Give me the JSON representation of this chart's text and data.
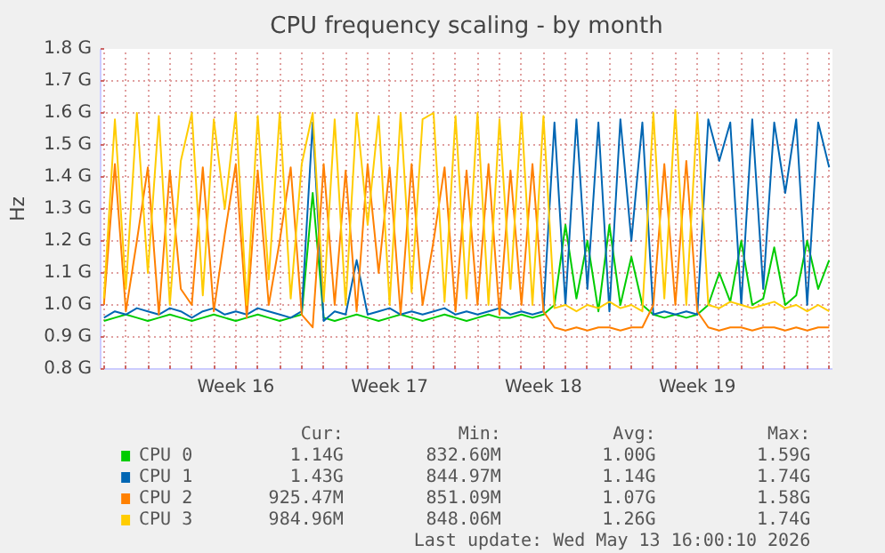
{
  "chart_data": {
    "type": "line",
    "title": "CPU frequency scaling - by month",
    "ylabel": "Hz",
    "categories": [
      null,
      null,
      null,
      null,
      null,
      null,
      null,
      null,
      null,
      null,
      null,
      null,
      "Week 16",
      null,
      null,
      null,
      null,
      null,
      null,
      null,
      null,
      null,
      null,
      null,
      null,
      null,
      "Week 17",
      null,
      null,
      null,
      null,
      null,
      null,
      null,
      null,
      null,
      null,
      null,
      null,
      null,
      "Week 18",
      null,
      null,
      null,
      null,
      null,
      null,
      null,
      null,
      null,
      null,
      null,
      null,
      null,
      "Week 19",
      null,
      null,
      null,
      null,
      null,
      null,
      null,
      null,
      null,
      null,
      null,
      null
    ],
    "ylim": [
      0.8,
      1.8
    ],
    "yticks": [
      {
        "value": 0.8,
        "label": "0.8 G"
      },
      {
        "value": 0.9,
        "label": "0.9 G"
      },
      {
        "value": 1.0,
        "label": "1.0 G"
      },
      {
        "value": 1.1,
        "label": "1.1 G"
      },
      {
        "value": 1.2,
        "label": "1.2 G"
      },
      {
        "value": 1.3,
        "label": "1.3 G"
      },
      {
        "value": 1.4,
        "label": "1.4 G"
      },
      {
        "value": 1.5,
        "label": "1.5 G"
      },
      {
        "value": 1.6,
        "label": "1.6 G"
      },
      {
        "value": 1.7,
        "label": "1.7 G"
      },
      {
        "value": 1.8,
        "label": "1.8 G"
      }
    ],
    "grid": true,
    "legend": "bottom",
    "series": [
      {
        "name": "CPU 0",
        "color": "#00cc00",
        "values": [
          0.95,
          0.96,
          0.97,
          0.96,
          0.95,
          0.96,
          0.97,
          0.96,
          0.95,
          0.96,
          0.97,
          0.96,
          0.95,
          0.96,
          0.97,
          0.96,
          0.95,
          0.96,
          0.97,
          1.35,
          0.96,
          0.95,
          0.96,
          0.97,
          0.96,
          0.95,
          0.96,
          0.97,
          0.96,
          0.95,
          0.96,
          0.97,
          0.96,
          0.95,
          0.96,
          0.97,
          0.96,
          0.96,
          0.97,
          0.96,
          0.97,
          1.0,
          1.25,
          1.02,
          1.2,
          0.98,
          1.25,
          1.0,
          1.15,
          1.0,
          0.97,
          0.96,
          0.97,
          0.96,
          0.97,
          1.0,
          1.1,
          1.01,
          1.2,
          1.0,
          1.02,
          1.18,
          1.0,
          1.03,
          1.2,
          1.05,
          1.14
        ]
      },
      {
        "name": "CPU 1",
        "color": "#0066b3",
        "values": [
          0.96,
          0.98,
          0.97,
          0.99,
          0.98,
          0.97,
          0.99,
          0.98,
          0.96,
          0.98,
          0.99,
          0.97,
          0.98,
          0.97,
          0.99,
          0.98,
          0.97,
          0.96,
          0.98,
          1.57,
          0.95,
          0.98,
          0.97,
          1.14,
          0.97,
          0.98,
          0.99,
          0.97,
          0.98,
          0.97,
          0.98,
          0.99,
          0.97,
          0.98,
          0.97,
          0.98,
          0.99,
          0.97,
          0.98,
          0.97,
          0.98,
          1.57,
          1.0,
          1.58,
          1.05,
          1.57,
          0.98,
          1.58,
          1.2,
          1.57,
          0.97,
          0.98,
          0.97,
          0.98,
          0.97,
          1.58,
          1.45,
          1.57,
          1.0,
          1.58,
          1.05,
          1.57,
          1.35,
          1.58,
          1.0,
          1.57,
          1.43
        ]
      },
      {
        "name": "CPU 2",
        "color": "#ff8000",
        "values": [
          1.0,
          1.44,
          0.98,
          1.2,
          1.43,
          0.97,
          1.42,
          1.05,
          1.0,
          1.43,
          0.98,
          1.22,
          1.44,
          0.96,
          1.42,
          1.0,
          1.2,
          1.43,
          0.97,
          0.93,
          1.44,
          1.0,
          1.42,
          0.98,
          1.44,
          1.1,
          1.43,
          0.97,
          1.44,
          1.0,
          1.2,
          1.43,
          0.98,
          1.42,
          1.0,
          1.44,
          0.97,
          1.42,
          1.0,
          1.44,
          0.98,
          0.93,
          0.92,
          0.93,
          0.92,
          0.93,
          0.93,
          0.92,
          0.93,
          0.93,
          1.0,
          1.44,
          1.0,
          1.45,
          0.98,
          0.93,
          0.92,
          0.93,
          0.93,
          0.92,
          0.93,
          0.93,
          0.92,
          0.93,
          0.92,
          0.93,
          0.93
        ]
      },
      {
        "name": "CPU 3",
        "color": "#ffcc00",
        "values": [
          1.02,
          1.58,
          1.05,
          1.6,
          1.1,
          1.59,
          1.0,
          1.45,
          1.6,
          1.03,
          1.58,
          1.3,
          1.6,
          1.0,
          1.59,
          1.08,
          1.6,
          1.02,
          1.44,
          1.6,
          1.01,
          1.58,
          1.0,
          1.6,
          1.25,
          1.59,
          1.0,
          1.6,
          1.04,
          1.58,
          1.6,
          1.01,
          1.59,
          1.02,
          1.6,
          1.0,
          1.58,
          1.05,
          1.6,
          1.0,
          1.59,
          0.99,
          1.0,
          0.98,
          1.0,
          0.99,
          1.01,
          0.99,
          1.0,
          0.98,
          1.6,
          1.02,
          1.61,
          1.0,
          1.6,
          1.0,
          0.99,
          1.01,
          1.0,
          0.99,
          1.0,
          1.01,
          0.99,
          1.0,
          0.98,
          1.0,
          0.98
        ]
      }
    ],
    "annotations": [
      "Cur:",
      "Min:",
      "Avg:",
      "Max:",
      "1.14G",
      "832.60M",
      "1.00G",
      "1.59G",
      "1.43G",
      "844.97M",
      "1.14G",
      "1.74G",
      "925.47M",
      "851.09M",
      "1.07G",
      "1.58G",
      "984.96M",
      "848.06M",
      "1.26G",
      "1.74G",
      "Last update: Wed May 13 16:00:10 2026"
    ]
  }
}
